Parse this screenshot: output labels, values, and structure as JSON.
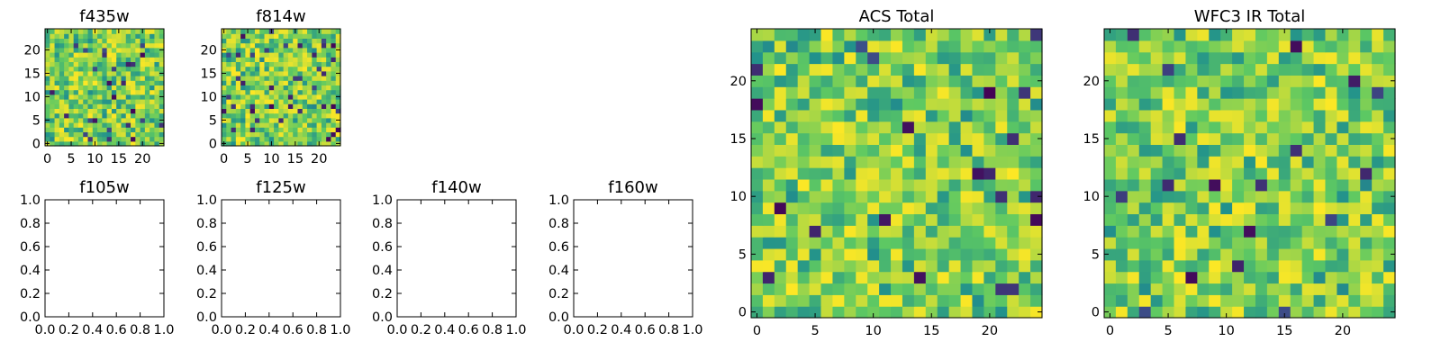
{
  "figure": {
    "background": "#ffffff",
    "colormap": "viridis",
    "colormap_stops": [
      "#440154",
      "#3b528b",
      "#21918c",
      "#5ec962",
      "#fde725"
    ]
  },
  "chart_data": [
    {
      "id": "f435w",
      "type": "heatmap",
      "title": "f435w",
      "xlabel": "",
      "ylabel": "",
      "grid_size": 25,
      "xlim": [
        -0.5,
        24.5
      ],
      "ylim": [
        -0.5,
        24.5
      ],
      "xticks": [
        0,
        5,
        10,
        15,
        20
      ],
      "xtick_labels": [
        "0",
        "5",
        "10",
        "15",
        "20"
      ],
      "yticks": [
        0,
        5,
        10,
        15,
        20
      ],
      "ytick_labels": [
        "0",
        "5",
        "10",
        "15",
        "20"
      ],
      "color_range": [
        0,
        1
      ],
      "pixel_seed": 435,
      "origin": "lower"
    },
    {
      "id": "f814w",
      "type": "heatmap",
      "title": "f814w",
      "xlabel": "",
      "ylabel": "",
      "grid_size": 25,
      "xlim": [
        -0.5,
        24.5
      ],
      "ylim": [
        -0.5,
        24.5
      ],
      "xticks": [
        0,
        5,
        10,
        15,
        20
      ],
      "xtick_labels": [
        "0",
        "5",
        "10",
        "15",
        "20"
      ],
      "yticks": [
        0,
        5,
        10,
        15,
        20
      ],
      "ytick_labels": [
        "0",
        "5",
        "10",
        "15",
        "20"
      ],
      "color_range": [
        0,
        1
      ],
      "pixel_seed": 814,
      "origin": "lower"
    },
    {
      "id": "f105w",
      "type": "empty",
      "title": "f105w",
      "xlim": [
        0,
        1
      ],
      "ylim": [
        0,
        1
      ],
      "xticks": [
        0,
        0.2,
        0.4,
        0.6,
        0.8,
        1.0
      ],
      "xtick_labels": [
        "0.0",
        "0.2",
        "0.4",
        "0.6",
        "0.8",
        "1.0"
      ],
      "yticks": [
        0,
        0.2,
        0.4,
        0.6,
        0.8,
        1.0
      ],
      "ytick_labels": [
        "0.0",
        "0.2",
        "0.4",
        "0.6",
        "0.8",
        "1.0"
      ]
    },
    {
      "id": "f125w",
      "type": "empty",
      "title": "f125w",
      "xlim": [
        0,
        1
      ],
      "ylim": [
        0,
        1
      ],
      "xticks": [
        0,
        0.2,
        0.4,
        0.6,
        0.8,
        1.0
      ],
      "xtick_labels": [
        "0.0",
        "0.2",
        "0.4",
        "0.6",
        "0.8",
        "1.0"
      ],
      "yticks": [
        0,
        0.2,
        0.4,
        0.6,
        0.8,
        1.0
      ],
      "ytick_labels": [
        "0.0",
        "0.2",
        "0.4",
        "0.6",
        "0.8",
        "1.0"
      ]
    },
    {
      "id": "f140w",
      "type": "empty",
      "title": "f140w",
      "xlim": [
        0,
        1
      ],
      "ylim": [
        0,
        1
      ],
      "xticks": [
        0,
        0.2,
        0.4,
        0.6,
        0.8,
        1.0
      ],
      "xtick_labels": [
        "0.0",
        "0.2",
        "0.4",
        "0.6",
        "0.8",
        "1.0"
      ],
      "yticks": [
        0,
        0.2,
        0.4,
        0.6,
        0.8,
        1.0
      ],
      "ytick_labels": [
        "0.0",
        "0.2",
        "0.4",
        "0.6",
        "0.8",
        "1.0"
      ]
    },
    {
      "id": "f160w",
      "type": "empty",
      "title": "f160w",
      "xlim": [
        0,
        1
      ],
      "ylim": [
        0,
        1
      ],
      "xticks": [
        0,
        0.2,
        0.4,
        0.6,
        0.8,
        1.0
      ],
      "xtick_labels": [
        "0.0",
        "0.2",
        "0.4",
        "0.6",
        "0.8",
        "1.0"
      ],
      "yticks": [
        0,
        0.2,
        0.4,
        0.6,
        0.8,
        1.0
      ],
      "ytick_labels": [
        "0.0",
        "0.2",
        "0.4",
        "0.6",
        "0.8",
        "1.0"
      ]
    },
    {
      "id": "acs-total",
      "type": "heatmap",
      "title": "ACS Total",
      "xlabel": "",
      "ylabel": "",
      "grid_size": 25,
      "xlim": [
        -0.5,
        24.5
      ],
      "ylim": [
        -0.5,
        24.5
      ],
      "xticks": [
        0,
        5,
        10,
        15,
        20
      ],
      "xtick_labels": [
        "0",
        "5",
        "10",
        "15",
        "20"
      ],
      "yticks": [
        0,
        5,
        10,
        15,
        20
      ],
      "ytick_labels": [
        "0",
        "5",
        "10",
        "15",
        "20"
      ],
      "color_range": [
        0,
        1
      ],
      "pixel_seed": 2001,
      "origin": "lower"
    },
    {
      "id": "wfc3-ir-total",
      "type": "heatmap",
      "title": "WFC3 IR Total",
      "xlabel": "",
      "ylabel": "",
      "grid_size": 25,
      "xlim": [
        -0.5,
        24.5
      ],
      "ylim": [
        -0.5,
        24.5
      ],
      "xticks": [
        0,
        5,
        10,
        15,
        20
      ],
      "xtick_labels": [
        "0",
        "5",
        "10",
        "15",
        "20"
      ],
      "yticks": [
        0,
        5,
        10,
        15,
        20
      ],
      "ytick_labels": [
        "0",
        "5",
        "10",
        "15",
        "20"
      ],
      "color_range": [
        0,
        1
      ],
      "pixel_seed": 3003,
      "origin": "lower"
    }
  ]
}
